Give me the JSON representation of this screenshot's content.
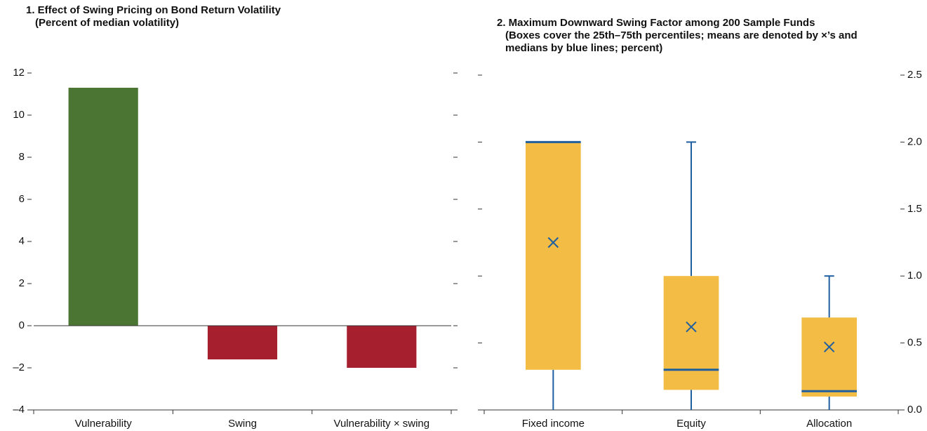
{
  "chart_data": [
    {
      "type": "bar",
      "title": "1. Effect of Swing Pricing on Bond Return Volatility",
      "subtitle": "(Percent of median volatility)",
      "categories": [
        "Vulnerability",
        "Swing",
        "Vulnerability × swing"
      ],
      "values": [
        11.3,
        -1.6,
        -2.0
      ],
      "colors": [
        "#4a7533",
        "#a61f2e",
        "#a61f2e"
      ],
      "ylim": [
        -4,
        12
      ],
      "yticks": [
        {
          "value": -4,
          "label": "–4"
        },
        {
          "value": -2,
          "label": "–2"
        },
        0,
        2,
        4,
        6,
        8,
        10,
        12
      ]
    },
    {
      "type": "box",
      "title": "2. Maximum Downward Swing Factor among 200 Sample Funds",
      "subtitle": "(Boxes cover the 25th–75th percentiles; means are denoted by ×’s and medians by blue lines; percent)",
      "categories": [
        "Fixed income",
        "Equity",
        "Allocation"
      ],
      "min": [
        0,
        0,
        0
      ],
      "q1": [
        0.3,
        0.15,
        0.1
      ],
      "median": [
        2.0,
        0.3,
        0.14
      ],
      "q3": [
        2.0,
        1.0,
        0.69
      ],
      "max": [
        2.0,
        2.0,
        1.0
      ],
      "mean": [
        1.25,
        0.62,
        0.47
      ],
      "color": "#f2bc45",
      "line_color": "#1f5fa0",
      "ylim": [
        0,
        2.5
      ],
      "yticks": [
        {
          "value": 0,
          "label": "0.0"
        },
        0.5,
        {
          "value": 1,
          "label": "1.0"
        },
        1.5,
        {
          "value": 2,
          "label": "2.0"
        },
        2.5
      ]
    }
  ]
}
